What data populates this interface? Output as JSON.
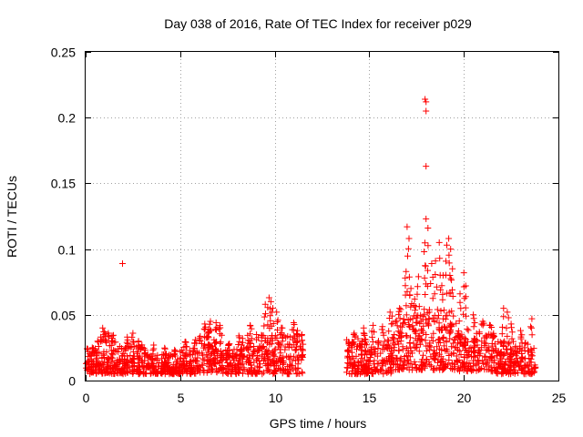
{
  "chart_data": {
    "type": "scatter",
    "title": "Day 038 of 2016, Rate Of TEC Index for receiver p029",
    "xlabel": "GPS time / hours",
    "ylabel": "ROTI / TECUs",
    "xlim": [
      0,
      25
    ],
    "ylim": [
      0,
      0.25
    ],
    "xticks": [
      0,
      5,
      10,
      15,
      20,
      25
    ],
    "xtick_labels": [
      "0",
      "5",
      "10",
      "15",
      "20",
      "25"
    ],
    "yticks": [
      0,
      0.05,
      0.1,
      0.15,
      0.2,
      0.25
    ],
    "ytick_labels": [
      "0",
      "0.05",
      "0.1",
      "0.15",
      "0.2",
      "0.25"
    ],
    "grid": true,
    "marker": "+",
    "series_color": "#ff0000",
    "note": "Dense band of ~thousands of ROTI samples; outliers listed explicitly, bulk summarized as segments with typical range and peaks.",
    "segments": [
      {
        "x_start": 0.0,
        "x_end": 0.6,
        "low": 0.005,
        "high": 0.022,
        "peaks": [
          [
            0.1,
            0.024
          ],
          [
            0.35,
            0.025
          ],
          [
            0.5,
            0.023
          ]
        ]
      },
      {
        "x_start": 0.6,
        "x_end": 1.6,
        "low": 0.005,
        "high": 0.03,
        "peaks": [
          [
            0.8,
            0.033
          ],
          [
            1.0,
            0.037
          ],
          [
            1.2,
            0.036
          ],
          [
            1.4,
            0.034
          ],
          [
            0.9,
            0.04
          ]
        ]
      },
      {
        "x_start": 1.6,
        "x_end": 3.2,
        "low": 0.005,
        "high": 0.026,
        "peaks": [
          [
            2.2,
            0.033
          ],
          [
            2.5,
            0.036
          ],
          [
            2.8,
            0.03
          ],
          [
            3.0,
            0.025
          ]
        ]
      },
      {
        "x_start": 3.2,
        "x_end": 5.0,
        "low": 0.005,
        "high": 0.02,
        "peaks": [
          [
            3.6,
            0.027
          ],
          [
            4.2,
            0.024
          ],
          [
            4.7,
            0.022
          ]
        ]
      },
      {
        "x_start": 5.0,
        "x_end": 6.0,
        "low": 0.005,
        "high": 0.026,
        "peaks": [
          [
            5.3,
            0.029
          ],
          [
            5.8,
            0.031
          ]
        ]
      },
      {
        "x_start": 6.0,
        "x_end": 7.2,
        "low": 0.006,
        "high": 0.035,
        "peaks": [
          [
            6.3,
            0.043
          ],
          [
            6.6,
            0.045
          ],
          [
            6.9,
            0.044
          ],
          [
            7.1,
            0.042
          ],
          [
            6.5,
            0.039
          ]
        ]
      },
      {
        "x_start": 7.2,
        "x_end": 8.4,
        "low": 0.005,
        "high": 0.024,
        "peaks": [
          [
            7.6,
            0.028
          ],
          [
            8.1,
            0.034
          ],
          [
            8.3,
            0.032
          ]
        ]
      },
      {
        "x_start": 8.5,
        "x_end": 11.5,
        "low": 0.005,
        "high": 0.035,
        "peaks": [
          [
            8.7,
            0.042
          ],
          [
            9.5,
            0.058
          ],
          [
            9.7,
            0.063
          ],
          [
            9.8,
            0.06
          ],
          [
            9.9,
            0.055
          ],
          [
            10.1,
            0.052
          ],
          [
            10.4,
            0.04
          ],
          [
            11.0,
            0.044
          ],
          [
            11.2,
            0.038
          ]
        ]
      },
      {
        "x_start": 13.8,
        "x_end": 16.2,
        "low": 0.005,
        "high": 0.032,
        "peaks": [
          [
            14.2,
            0.036
          ],
          [
            14.7,
            0.04
          ],
          [
            15.2,
            0.042
          ],
          [
            15.7,
            0.041
          ],
          [
            16.1,
            0.052
          ]
        ]
      },
      {
        "x_start": 16.2,
        "x_end": 17.8,
        "low": 0.008,
        "high": 0.05,
        "peaks": [
          [
            16.6,
            0.055
          ],
          [
            16.9,
            0.078
          ],
          [
            17.0,
            0.117
          ],
          [
            17.1,
            0.108
          ],
          [
            17.2,
            0.07
          ],
          [
            17.4,
            0.062
          ],
          [
            17.6,
            0.079
          ]
        ]
      },
      {
        "x_start": 17.8,
        "x_end": 19.6,
        "low": 0.008,
        "high": 0.055,
        "peaks": [
          [
            17.9,
            0.098
          ],
          [
            18.0,
            0.123
          ],
          [
            18.1,
            0.116
          ],
          [
            18.3,
            0.089
          ],
          [
            18.5,
            0.091
          ],
          [
            18.7,
            0.105
          ],
          [
            18.9,
            0.08
          ],
          [
            19.1,
            0.103
          ],
          [
            19.2,
            0.108
          ],
          [
            19.3,
            0.1
          ],
          [
            19.4,
            0.085
          ]
        ]
      },
      {
        "x_start": 19.6,
        "x_end": 21.6,
        "low": 0.007,
        "high": 0.04,
        "peaks": [
          [
            19.8,
            0.066
          ],
          [
            20.0,
            0.082
          ],
          [
            20.1,
            0.072
          ],
          [
            20.5,
            0.05
          ],
          [
            21.0,
            0.045
          ],
          [
            21.4,
            0.042
          ]
        ]
      },
      {
        "x_start": 21.6,
        "x_end": 23.8,
        "low": 0.005,
        "high": 0.03,
        "peaks": [
          [
            22.1,
            0.055
          ],
          [
            22.3,
            0.052
          ],
          [
            22.5,
            0.043
          ],
          [
            23.0,
            0.038
          ],
          [
            23.6,
            0.047
          ]
        ]
      }
    ],
    "outliers": [
      {
        "x": 1.95,
        "y": 0.089
      },
      {
        "x": 17.95,
        "y": 0.214
      },
      {
        "x": 18.0,
        "y": 0.212
      },
      {
        "x": 18.0,
        "y": 0.205
      },
      {
        "x": 18.0,
        "y": 0.163
      }
    ]
  }
}
